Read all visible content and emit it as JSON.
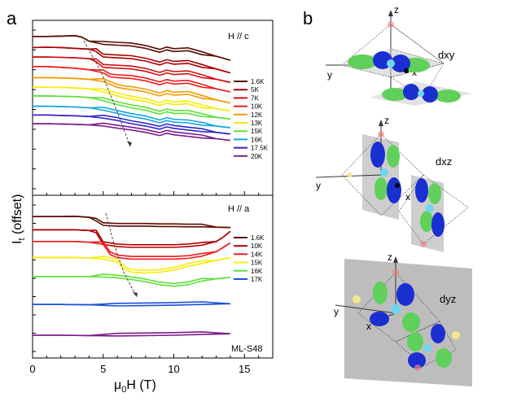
{
  "chart_data": [
    {
      "type": "line",
      "panel_label": "a",
      "annotation": "H // c",
      "xlim": [
        0,
        17
      ],
      "ylim": [
        0,
        10
      ],
      "xticks": [
        "0",
        "5",
        "10",
        "15"
      ],
      "series": [
        {
          "name": "1.6K",
          "color": "#5a0a00",
          "x": [
            0,
            1,
            2,
            3,
            3.5,
            4,
            5,
            6,
            7,
            8,
            9,
            9.5,
            10,
            11,
            12,
            13,
            14
          ],
          "y": [
            9.5,
            9.5,
            9.52,
            9.55,
            9.45,
            9.2,
            9.0,
            8.95,
            8.9,
            8.75,
            8.5,
            8.65,
            8.55,
            8.6,
            8.35,
            8.25,
            8.0
          ]
        },
        {
          "name": "5K",
          "color": "#aa0000",
          "x": [
            0,
            1,
            2,
            3,
            4,
            4.5,
            5,
            6,
            7,
            8,
            9,
            9.5,
            10,
            11,
            12,
            13,
            14
          ],
          "y": [
            8.8,
            8.82,
            8.8,
            8.75,
            8.7,
            8.55,
            8.2,
            8.15,
            8.1,
            7.95,
            7.7,
            7.85,
            7.75,
            7.8,
            7.55,
            7.45,
            7.2
          ]
        },
        {
          "name": "7K",
          "color": "#d01010",
          "x": [
            0,
            1,
            2,
            3,
            4,
            4.5,
            5,
            6,
            7,
            8,
            9,
            9.5,
            10,
            11,
            12,
            13,
            14
          ],
          "y": [
            8.2,
            8.2,
            8.18,
            8.15,
            8.1,
            7.9,
            7.55,
            7.5,
            7.45,
            7.3,
            7.05,
            7.2,
            7.1,
            7.15,
            6.9,
            6.8,
            6.6
          ]
        },
        {
          "name": "10K",
          "color": "#ee1c1c",
          "x": [
            0,
            1,
            2,
            3,
            4,
            5,
            5.5,
            6,
            7,
            8,
            9,
            9.5,
            10,
            11,
            12,
            13,
            14
          ],
          "y": [
            7.6,
            7.6,
            7.55,
            7.5,
            7.4,
            7.2,
            6.95,
            6.9,
            6.85,
            6.7,
            6.45,
            6.6,
            6.5,
            6.55,
            6.3,
            6.2,
            6.0
          ]
        },
        {
          "name": "12K",
          "color": "#f39a00",
          "x": [
            0,
            1,
            2,
            3,
            4,
            5,
            6,
            6.5,
            7,
            8,
            9,
            9.5,
            10,
            11,
            12,
            13,
            14
          ],
          "y": [
            6.9,
            6.9,
            6.88,
            6.85,
            6.8,
            6.65,
            6.3,
            6.2,
            6.15,
            6.0,
            5.75,
            5.9,
            5.8,
            5.85,
            5.6,
            5.5,
            5.3
          ]
        },
        {
          "name": "13K",
          "color": "#f7ec00",
          "x": [
            0,
            1,
            2,
            3,
            4,
            5,
            6,
            7,
            8,
            9,
            9.5,
            10,
            11,
            12,
            13,
            14
          ],
          "y": [
            6.3,
            6.3,
            6.28,
            6.25,
            6.2,
            6.0,
            5.75,
            5.55,
            5.4,
            5.15,
            5.3,
            5.2,
            5.25,
            5.0,
            4.95,
            4.8
          ]
        },
        {
          "name": "15K",
          "color": "#5fe03a",
          "x": [
            0,
            1,
            2,
            3,
            4,
            5,
            6,
            7,
            8,
            9,
            9.5,
            10,
            11,
            12,
            13,
            14
          ],
          "y": [
            5.75,
            5.75,
            5.73,
            5.7,
            5.65,
            5.45,
            5.2,
            5.0,
            4.85,
            4.6,
            4.75,
            4.65,
            4.65,
            4.45,
            4.4,
            4.3
          ]
        },
        {
          "name": "16K",
          "color": "#14a6e0",
          "x": [
            0,
            1,
            2,
            3,
            4,
            5,
            6,
            7,
            8,
            9,
            9.5,
            10,
            11,
            12,
            13,
            14
          ],
          "y": [
            5.1,
            5.1,
            5.08,
            5.05,
            5.0,
            4.85,
            4.65,
            4.45,
            4.3,
            4.05,
            4.2,
            4.1,
            4.05,
            3.9,
            3.85,
            3.75
          ]
        },
        {
          "name": "17.5K",
          "color": "#3326c8",
          "x": [
            0,
            1,
            2,
            3,
            4,
            5,
            6,
            7,
            8,
            9,
            9.5,
            10,
            11,
            12,
            13,
            14
          ],
          "y": [
            4.55,
            4.55,
            4.52,
            4.5,
            4.45,
            4.35,
            4.2,
            4.0,
            3.85,
            3.65,
            3.8,
            3.7,
            3.6,
            3.5,
            3.45,
            3.35
          ]
        },
        {
          "name": "20K",
          "color": "#7b1a8a",
          "x": [
            0,
            1,
            2,
            3,
            4,
            5,
            6,
            7,
            8,
            9,
            9.5,
            10,
            11,
            12,
            13,
            14
          ],
          "y": [
            4.0,
            4.0,
            3.98,
            3.96,
            3.93,
            3.85,
            3.72,
            3.6,
            3.45,
            3.25,
            3.4,
            3.3,
            3.2,
            3.1,
            3.05,
            2.95
          ]
        }
      ]
    },
    {
      "type": "line",
      "panel_label": "",
      "annotation": "H // a",
      "sample_label": "ML-S48",
      "xlim": [
        0,
        17
      ],
      "ylim": [
        0,
        10
      ],
      "xticks": [
        "0",
        "5",
        "10",
        "15"
      ],
      "xlabel": "μ0H (T)",
      "ylabel": "It (offset)",
      "series": [
        {
          "name": "1.6K",
          "color": "#5a0a00",
          "x": [
            0,
            1,
            2,
            3,
            4,
            4.5,
            5,
            6,
            7,
            8,
            9,
            10,
            11,
            12,
            13,
            14
          ],
          "y": [
            9.1,
            9.1,
            9.1,
            9.12,
            9.05,
            8.8,
            8.5,
            8.45,
            8.45,
            8.45,
            8.42,
            8.42,
            8.4,
            8.4,
            8.38,
            8.35
          ]
        },
        {
          "name": "10K",
          "color": "#b30000",
          "x": [
            0,
            1,
            2,
            3,
            4,
            4.5,
            5,
            6,
            7,
            8,
            9,
            10,
            11,
            12,
            13,
            13.5,
            14
          ],
          "y": [
            8.2,
            8.2,
            8.2,
            8.2,
            8.15,
            8.0,
            7.2,
            7.05,
            7.0,
            7.0,
            7.0,
            7.0,
            7.05,
            7.15,
            7.4,
            7.7,
            8.1
          ]
        },
        {
          "name": "14K",
          "color": "#ee1c1c",
          "x": [
            0,
            1,
            2,
            3,
            4,
            5,
            5.5,
            6,
            7,
            8,
            9,
            10,
            11,
            12,
            13,
            14
          ],
          "y": [
            7.4,
            7.4,
            7.4,
            7.4,
            7.35,
            7.2,
            6.5,
            6.3,
            6.2,
            6.2,
            6.2,
            6.2,
            6.25,
            6.4,
            6.7,
            7.3
          ]
        },
        {
          "name": "15K",
          "color": "#f7ec00",
          "x": [
            0,
            1,
            2,
            3,
            4,
            5,
            6,
            6.5,
            7,
            8,
            9,
            10,
            11,
            12,
            13,
            14
          ],
          "y": [
            6.3,
            6.3,
            6.3,
            6.3,
            6.28,
            6.2,
            6.0,
            5.5,
            5.3,
            5.25,
            5.3,
            5.45,
            5.7,
            5.9,
            6.1,
            6.3
          ]
        },
        {
          "name": "16K",
          "color": "#5fe03a",
          "x": [
            0,
            1,
            2,
            3,
            4,
            5,
            6,
            7,
            8,
            9,
            10,
            11,
            12,
            13,
            14
          ],
          "y": [
            5.0,
            5.0,
            5.0,
            5.0,
            5.0,
            4.98,
            4.92,
            4.8,
            4.65,
            4.45,
            4.35,
            4.45,
            4.7,
            4.85,
            4.95
          ]
        },
        {
          "name": "17K",
          "color": "#1a4fd8",
          "x": [
            0,
            2,
            4,
            6,
            8,
            10,
            12,
            14
          ],
          "y": [
            3.1,
            3.1,
            3.08,
            3.0,
            3.02,
            3.05,
            3.1,
            3.15
          ]
        },
        {
          "name": "",
          "color": "#7b1a8a",
          "x": [
            0,
            2,
            4,
            6,
            8,
            10,
            12,
            14
          ],
          "y": [
            1.0,
            1.0,
            0.98,
            0.95,
            0.97,
            1.0,
            1.05,
            1.1
          ]
        }
      ]
    }
  ],
  "panel_b": {
    "label": "b",
    "orbitals": [
      {
        "name": "dxy",
        "axes": [
          "z",
          "y",
          "x"
        ]
      },
      {
        "name": "dxz",
        "axes": [
          "z",
          "y",
          "x"
        ]
      },
      {
        "name": "dyz",
        "axes": [
          "z",
          "y",
          "x"
        ]
      }
    ],
    "colors": {
      "lobe_green": "#5fd05a",
      "lobe_blue": "#1a2fd0",
      "core_cyan": "#6fd6f0",
      "sphere_pink": "#f08080",
      "sphere_yellow": "#f5e88a",
      "plane": "#b9b9b9"
    }
  }
}
